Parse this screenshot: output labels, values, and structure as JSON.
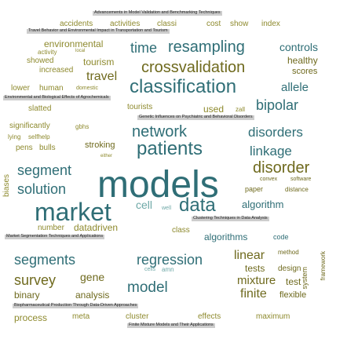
{
  "colors": {
    "olive": "#8e8a2e",
    "dark_olive": "#6f6a1e",
    "teal": "#2f6e76",
    "light_teal": "#6ea8a7",
    "highlight": "#cdcdcd"
  },
  "cloud": {
    "phrases": {
      "p1": "Advancements in Model Validation and Benchmarking Techniques",
      "p2": "Travel Behavior and Environmental Impact in Transportation and Tourism",
      "p3": "Environmental and Biological Effects of Agrochemicals",
      "p4": "Genetic Influences on Psychiatric and Behavioral Disorders",
      "p5": "Clustering Techniques in Data Analysis",
      "p6": "Market Segmentation Techniques and Applications",
      "p7": "Biopharmaceutical Production Through Data-Driven Approaches",
      "p8": "Finite Mixture Models and Their Applications"
    },
    "words": {
      "accidents": "accidents",
      "activities": "activities",
      "classi": "classi",
      "cost": "cost",
      "show": "show",
      "index": "index",
      "environmental": "environmental",
      "activity": "activity",
      "local": "local",
      "time": "time",
      "resampling": "resampling",
      "controls": "controls",
      "showed": "showed",
      "tourism": "tourism",
      "crossvalidation": "crossvalidation",
      "healthy": "healthy",
      "increased": "increased",
      "travel": "travel",
      "scores": "scores",
      "lower": "lower",
      "human": "human",
      "domestic": "domestic",
      "classification": "classification",
      "allele": "allele",
      "slatted": "slatted",
      "tourists": "tourists",
      "used": "used",
      "zall": "zall",
      "bipolar": "bipolar",
      "significantly": "significantly",
      "gbhs": "gbhs",
      "lying": "lying",
      "selfhelp": "selfhelp",
      "network": "network",
      "disorders": "disorders",
      "pens": "pens",
      "bulls": "bulls",
      "stroking": "stroking",
      "patients": "patients",
      "linkage": "linkage",
      "either": "either",
      "segment": "segment",
      "disorder": "disorder",
      "convex": "convex",
      "software": "software",
      "solution": "solution",
      "models": "models",
      "paper": "paper",
      "distance": "distance",
      "cell": "cell",
      "data": "data",
      "algorithm": "algorithm",
      "market": "market",
      "well": "well",
      "number": "number",
      "datadriven": "datadriven",
      "class": "class",
      "algorithms": "algorithms",
      "code": "code",
      "segments": "segments",
      "regression": "regression",
      "linear": "linear",
      "method": "method",
      "tests": "tests",
      "design": "design",
      "cells": "cells",
      "amn": "amn",
      "survey": "survey",
      "gene": "gene",
      "model": "model",
      "mixture": "mixture",
      "test": "test",
      "binary": "binary",
      "analysis": "analysis",
      "finite": "finite",
      "flexible": "flexible",
      "process": "process",
      "meta": "meta",
      "cluster": "cluster",
      "effects": "effects",
      "maximum": "maximum",
      "biases": "biases",
      "system": "system",
      "framework": "framework"
    }
  }
}
